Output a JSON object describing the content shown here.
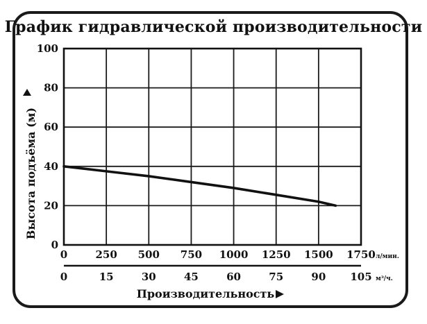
{
  "chart_data": {
    "type": "line",
    "title": "График гидравлической производительности",
    "xlabel": "Производительность",
    "ylabel": "Высота подъёма (м)",
    "x_unit_primary": "л/мин.",
    "x_unit_secondary": "м³/ч.",
    "xlim": [
      0,
      1750
    ],
    "ylim": [
      0,
      100
    ],
    "x_ticks_primary": [
      "0",
      "250",
      "500",
      "750",
      "1000",
      "1250",
      "1500",
      "1750"
    ],
    "x_ticks_secondary": [
      "0",
      "15",
      "30",
      "45",
      "60",
      "75",
      "90",
      "105"
    ],
    "y_ticks": [
      "0",
      "20",
      "40",
      "60",
      "80",
      "100"
    ],
    "grid": true,
    "series": [
      {
        "x": [
          0,
          250,
          500,
          750,
          1000,
          1250,
          1500,
          1600
        ],
        "y": [
          40,
          37.5,
          35,
          32,
          29,
          25.5,
          22,
          20
        ]
      }
    ],
    "line_color": "#111111"
  }
}
